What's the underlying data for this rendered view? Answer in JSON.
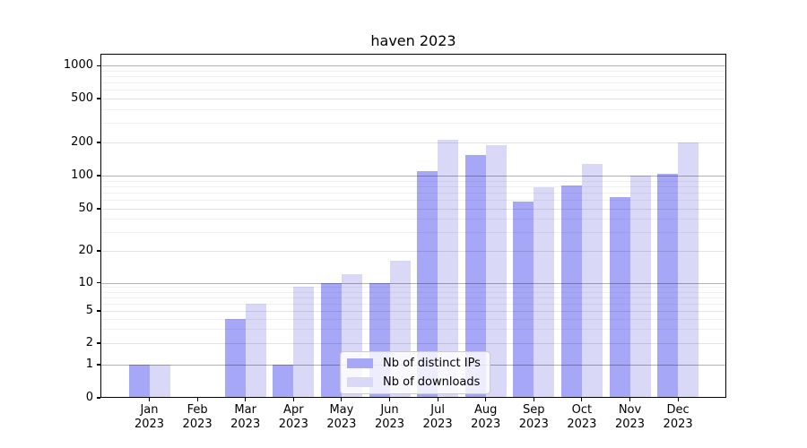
{
  "chart_data": {
    "type": "bar",
    "title": "haven 2023",
    "categories": [
      "Jan",
      "Feb",
      "Mar",
      "Apr",
      "May",
      "Jun",
      "Jul",
      "Aug",
      "Sep",
      "Oct",
      "Nov",
      "Dec"
    ],
    "category_year": "2023",
    "series": [
      {
        "name": "Nb of distinct IPs",
        "color": "#a7a7f7",
        "values": [
          1,
          0,
          4,
          1,
          10,
          10,
          110,
          155,
          58,
          82,
          64,
          103
        ]
      },
      {
        "name": "Nb of downloads",
        "color": "#d9d9f7",
        "values": [
          1,
          0,
          6,
          9,
          12,
          16,
          210,
          190,
          78,
          128,
          100,
          200
        ]
      }
    ],
    "yticks": [
      0,
      1,
      2,
      5,
      10,
      20,
      50,
      100,
      200,
      500,
      1000
    ],
    "yscale": "symlog",
    "ylim": [
      0,
      1260
    ],
    "grid": "both",
    "legend_position": "lower-center-inside"
  }
}
